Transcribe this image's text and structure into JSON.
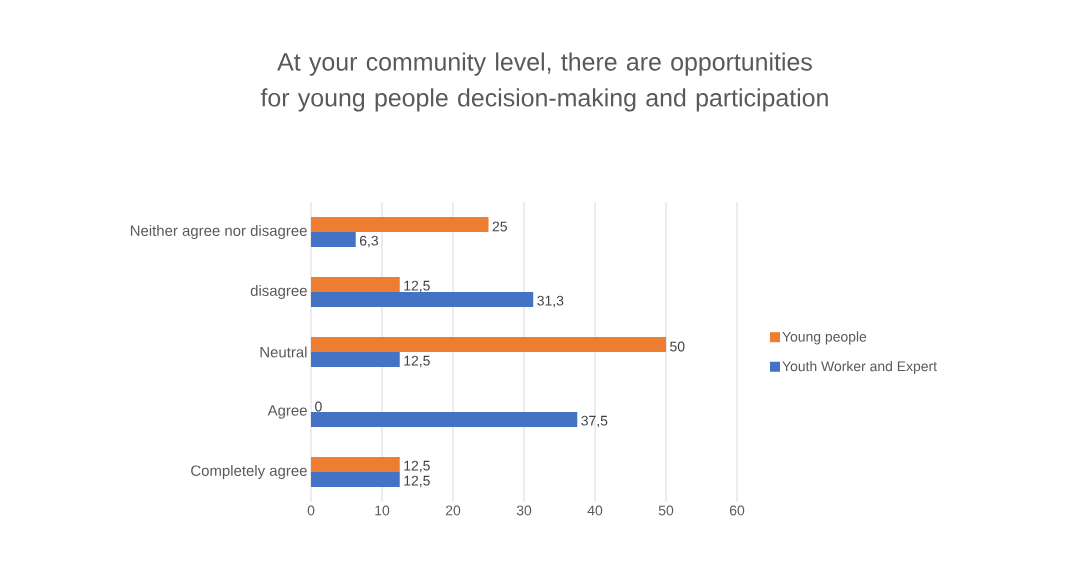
{
  "chart_data": {
    "type": "bar",
    "orientation": "horizontal",
    "title": "At your community level, there are opportunities for young people decision-making and participation",
    "categories": [
      "Neither agree nor disagree",
      "disagree",
      "Neutral",
      "Agree",
      "Completely agree"
    ],
    "series": [
      {
        "name": "Young people",
        "color": "#ed7d31",
        "values": [
          25,
          12.5,
          50,
          0,
          12.5
        ],
        "value_labels": [
          "25",
          "12,5",
          "50",
          "0",
          "12,5"
        ]
      },
      {
        "name": "Youth Worker and Expert",
        "color": "#4472c4",
        "values": [
          6.3,
          31.3,
          12.5,
          37.5,
          12.5
        ],
        "value_labels": [
          "6,3",
          "31,3",
          "12,5",
          "37,5",
          "12,5"
        ]
      }
    ],
    "xlim": [
      0,
      60
    ],
    "xticks": [
      0,
      10,
      20,
      30,
      40,
      50,
      60
    ],
    "grid": "x",
    "legend": "right"
  }
}
